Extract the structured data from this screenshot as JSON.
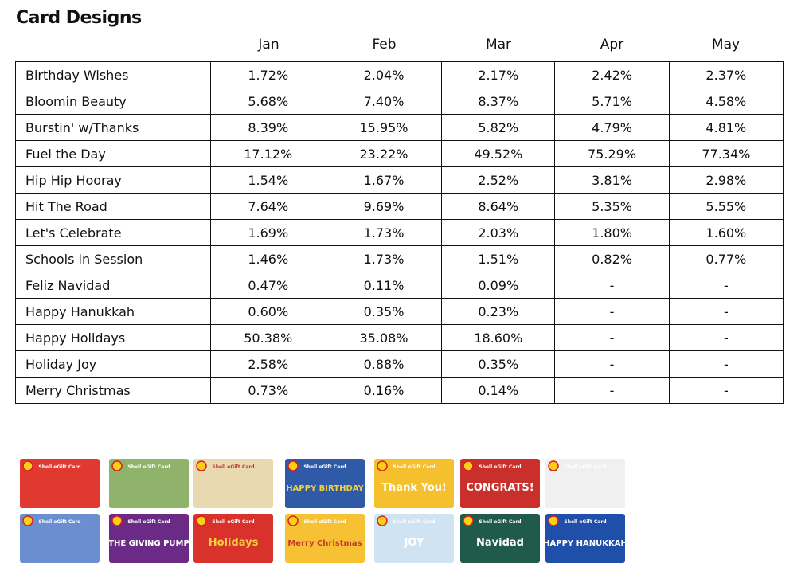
{
  "title": "Card Designs",
  "table": {
    "columns": [
      "Jan",
      "Feb",
      "Mar",
      "Apr",
      "May"
    ],
    "rows": [
      [
        "Birthday Wishes",
        "1.72%",
        "2.04%",
        "2.17%",
        "2.42%",
        "2.37%"
      ],
      [
        "Bloomin Beauty",
        "5.68%",
        "7.40%",
        "8.37%",
        "5.71%",
        "4.58%"
      ],
      [
        "Burstin' w/Thanks",
        "8.39%",
        "15.95%",
        "5.82%",
        "4.79%",
        "4.81%"
      ],
      [
        "Fuel the Day",
        "17.12%",
        "23.22%",
        "49.52%",
        "75.29%",
        "77.34%"
      ],
      [
        "Hip Hip Hooray",
        "1.54%",
        "1.67%",
        "2.52%",
        "3.81%",
        "2.98%"
      ],
      [
        "Hit The Road",
        "7.64%",
        "9.69%",
        "8.64%",
        "5.35%",
        "5.55%"
      ],
      [
        "Let's Celebrate",
        "1.69%",
        "1.73%",
        "2.03%",
        "1.80%",
        "1.60%"
      ],
      [
        "Schools in Session",
        "1.46%",
        "1.73%",
        "1.51%",
        "0.82%",
        "0.77%"
      ],
      [
        "Feliz Navidad",
        "0.47%",
        "0.11%",
        "0.09%",
        "-",
        "-"
      ],
      [
        "Happy Hanukkah",
        "0.60%",
        "0.35%",
        "0.23%",
        "-",
        "-"
      ],
      [
        "Happy Holidays",
        "50.38%",
        "35.08%",
        "18.60%",
        "-",
        "-"
      ],
      [
        "Holiday Joy",
        "2.58%",
        "0.88%",
        "0.35%",
        "-",
        "-"
      ],
      [
        "Merry Christmas",
        "0.73%",
        "0.16%",
        "0.14%",
        "-",
        "-"
      ]
    ]
  },
  "cards": [
    {
      "caption": "Shell eGift Card"
    },
    {
      "caption": "Shell eGift Card"
    },
    {
      "caption": "Shell eGift Card"
    },
    {
      "caption": "Shell eGift Card",
      "text": "HAPPY BIRTHDAY"
    },
    {
      "caption": "Shell eGift Card",
      "text": "Thank You!"
    },
    {
      "caption": "Shell eGift Card",
      "text": "CONGRATS!"
    },
    {
      "caption": "Shell eGift Card"
    },
    {
      "caption": "Shell eGift Card"
    },
    {
      "caption": "Shell eGift Card",
      "text": "THE GIVING PUMP"
    },
    {
      "caption": "Shell eGift Card",
      "text": "Holidays"
    },
    {
      "caption": "Shell eGift Card",
      "text": "Merry Christmas"
    },
    {
      "caption": "Shell eGift Card",
      "text": "JOY"
    },
    {
      "caption": "Shell eGift Card",
      "text": "Navidad"
    },
    {
      "caption": "Shell eGift Card",
      "text": "HAPPY HANUKKAH"
    }
  ]
}
